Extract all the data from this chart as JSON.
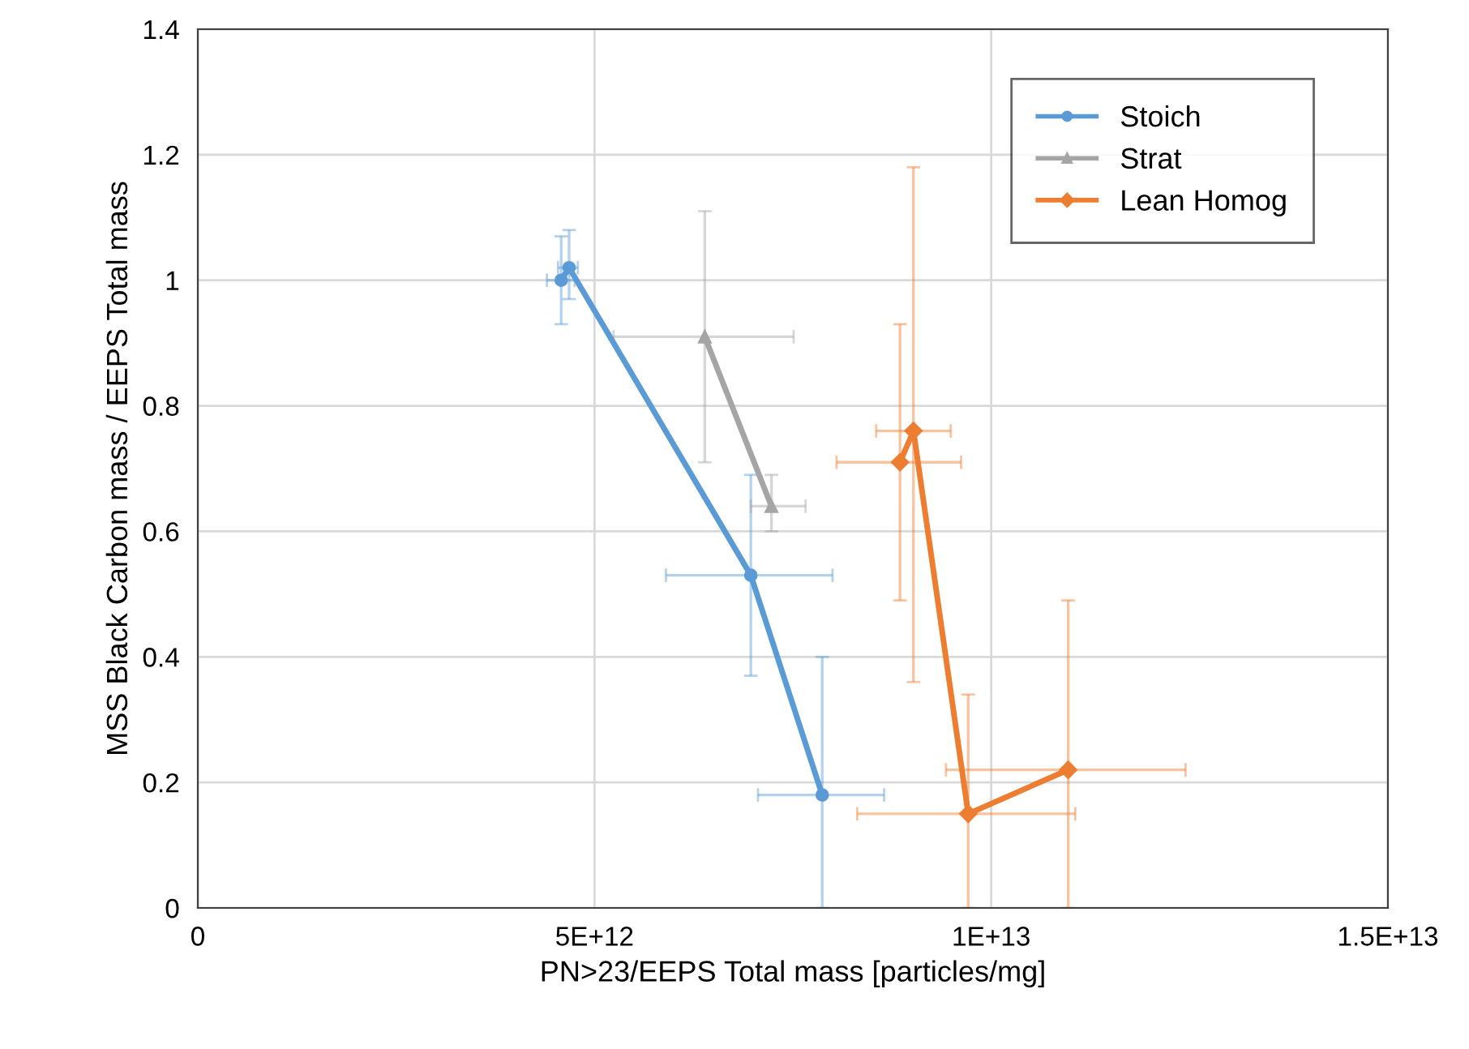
{
  "chart_data": {
    "type": "line",
    "xlabel": "PN>23/EEPS Total mass [particles/mg]",
    "ylabel": "MSS Black Carbon mass / EEPS Total mass",
    "xlim": [
      0,
      15000000000000.0
    ],
    "xticks": [
      0,
      {
        "value": 5000000000000.0,
        "label": "5E+12"
      },
      {
        "value": 10000000000000.0,
        "label": "1E+13"
      },
      {
        "value": 15000000000000.0,
        "label": "1.5E+13"
      }
    ],
    "ylim": [
      0,
      1.4
    ],
    "yticks": [
      0,
      0.2,
      0.4,
      0.6,
      0.8,
      1,
      1.2,
      1.4
    ],
    "grid": true,
    "legend": "top right",
    "series": [
      {
        "name": "Stoich",
        "color": "#5b9bd5",
        "marker": "circle",
        "x": [
          4580000000000.0,
          4680000000000.0,
          6970000000000.0,
          7870000000000.0
        ],
        "values": [
          1.0,
          1.02,
          0.53,
          0.18
        ],
        "errors": [
          [
            0.93,
            1.07
          ],
          [
            0.97,
            1.08
          ],
          [
            0.37,
            0.69
          ],
          [
            0,
            0.4
          ]
        ],
        "xerrors": [
          [
            4400000000000.0,
            4750000000000.0
          ],
          [
            4540000000000.0,
            4790000000000.0
          ],
          [
            5900000000000.0,
            8000000000000.0
          ],
          [
            7060000000000.0,
            8650000000000.0
          ]
        ]
      },
      {
        "name": "Strat",
        "color": "#a5a5a5",
        "marker": "triangle",
        "x": [
          6390000000000.0,
          7230000000000.0
        ],
        "values": [
          0.91,
          0.64
        ],
        "errors": [
          [
            0.71,
            1.11
          ],
          [
            0.6,
            0.69
          ]
        ],
        "xerrors": [
          [
            5240000000000.0,
            7510000000000.0
          ],
          [
            6970000000000.0,
            7660000000000.0
          ]
        ]
      },
      {
        "name": "Lean Homog",
        "color": "#ed7d31",
        "marker": "diamond",
        "x": [
          8850000000000.0,
          9020000000000.0,
          9710000000000.0,
          10970000000000.0
        ],
        "values": [
          0.71,
          0.76,
          0.15,
          0.22
        ],
        "errors": [
          [
            0.49,
            0.93
          ],
          [
            0.36,
            1.18
          ],
          [
            0,
            0.34
          ],
          [
            0,
            0.49
          ]
        ],
        "xerrors": [
          [
            8050000000000.0,
            9620000000000.0
          ],
          [
            8550000000000.0,
            9490000000000.0
          ],
          [
            8310000000000.0,
            11060000000000.0
          ],
          [
            9430000000000.0,
            12450000000000.0
          ]
        ]
      }
    ]
  }
}
